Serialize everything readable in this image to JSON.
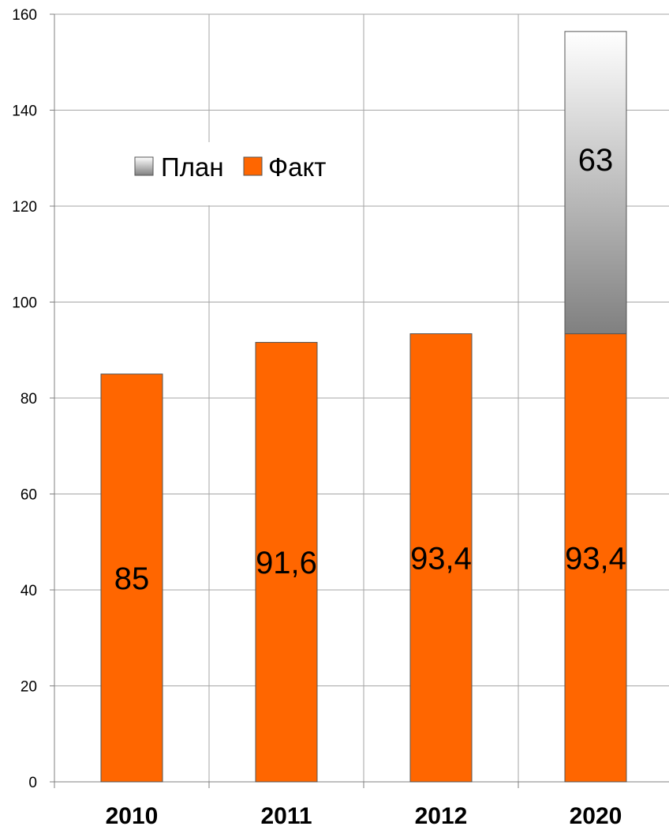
{
  "chart_data": {
    "type": "bar",
    "stacked": true,
    "categories": [
      "2010",
      "2011",
      "2012",
      "2020"
    ],
    "series": [
      {
        "name": "Факт",
        "values": [
          85,
          91.6,
          93.4,
          93.4
        ],
        "labels": [
          "85",
          "91,6",
          "93,4",
          "93,4"
        ],
        "color": "#ff6600"
      },
      {
        "name": "План",
        "values": [
          0,
          0,
          0,
          63
        ],
        "labels": [
          "",
          "",
          "",
          "63"
        ],
        "color_top": "#ffffff",
        "color_bottom": "#808080"
      }
    ],
    "ylim": [
      0,
      160
    ],
    "yticks": [
      "0",
      "20",
      "40",
      "60",
      "80",
      "100",
      "120",
      "140",
      "160"
    ],
    "grid": true,
    "legend": {
      "placement": "upper-left",
      "entries": [
        "План",
        "Факт"
      ]
    },
    "title": "",
    "xlabel": "",
    "ylabel": ""
  }
}
